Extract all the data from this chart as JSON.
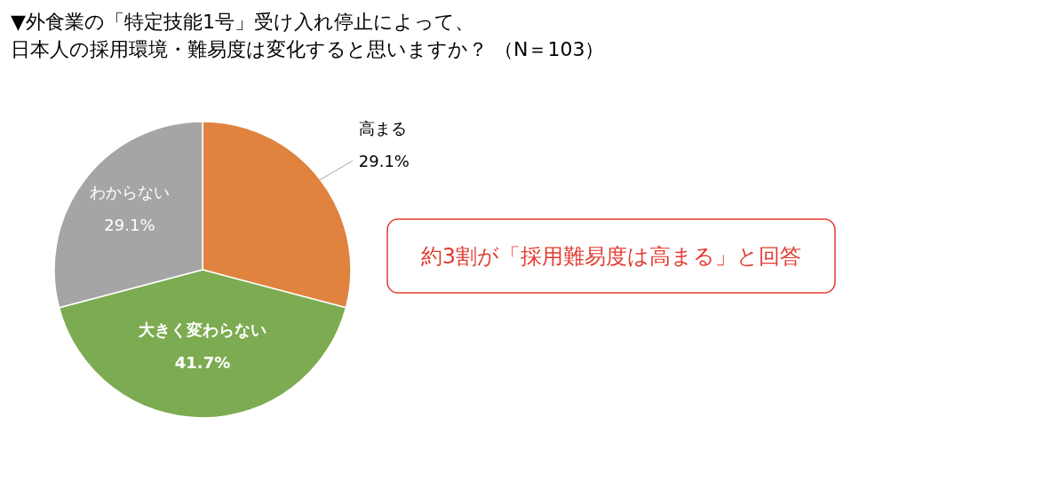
{
  "chart_data": {
    "type": "pie",
    "title": "▼外食業の「特定技能1号」受け入れ停止によって、",
    "subtitle": "日本人の採用環境・難易度は変化すると思いますか？ （N＝103）",
    "categories": [
      "高まる",
      "大きく変わらない",
      "わからない"
    ],
    "values": [
      29.1,
      41.7,
      29.1
    ],
    "colors": [
      "#e0833f",
      "#7dab52",
      "#a5a5a5"
    ],
    "value_labels": [
      "29.1%",
      "41.7%",
      "29.1%"
    ],
    "annotations": [
      "約3割が「採用難易度は高まる」と回答"
    ]
  }
}
